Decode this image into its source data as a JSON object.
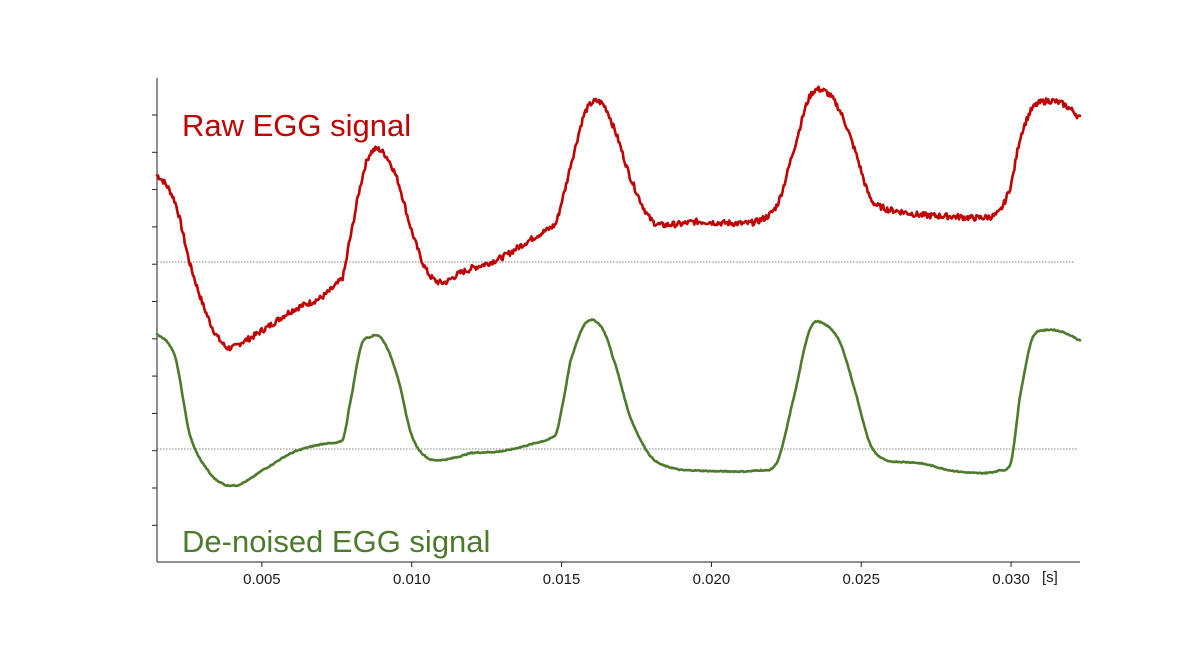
{
  "chart_data": {
    "type": "line",
    "title": "",
    "xlabel": "",
    "x_unit": "[s]",
    "ylabel": "",
    "xlim": [
      0.0015,
      0.0323
    ],
    "x_ticks": [
      0.005,
      0.01,
      0.015,
      0.02,
      0.025,
      0.03
    ],
    "x_tick_labels": [
      "0.005",
      "0.010",
      "0.015",
      "0.020",
      "0.025",
      "0.030"
    ],
    "y_ticks_unlabeled": true,
    "grid": false,
    "legend": "none (series labelled directly on the plot)",
    "series": [
      {
        "name": "Raw EGG signal",
        "color": "#c00000",
        "noisy": true,
        "y_range": [
          -1.05,
          1.0
        ],
        "x": [
          0.0015,
          0.0021,
          0.0026,
          0.0032,
          0.0037,
          0.004,
          0.0043,
          0.005,
          0.006,
          0.007,
          0.0077,
          0.0079,
          0.0083,
          0.0086,
          0.009,
          0.0095,
          0.01,
          0.0105,
          0.011,
          0.0116,
          0.012,
          0.013,
          0.014,
          0.0148,
          0.015,
          0.0153,
          0.0158,
          0.0163,
          0.0167,
          0.0173,
          0.018,
          0.0188,
          0.0195,
          0.0205,
          0.0215,
          0.0222,
          0.0228,
          0.0233,
          0.0238,
          0.0243,
          0.0248,
          0.0253,
          0.0258,
          0.0262,
          0.027,
          0.028,
          0.029,
          0.0296,
          0.03,
          0.0303,
          0.0307,
          0.0312,
          0.0317,
          0.0321,
          0.0323
        ],
        "y": [
          0.32,
          0.12,
          -0.35,
          -0.75,
          -0.95,
          -0.98,
          -0.94,
          -0.85,
          -0.7,
          -0.6,
          -0.45,
          -0.2,
          0.25,
          0.48,
          0.5,
          0.3,
          -0.1,
          -0.4,
          -0.49,
          -0.42,
          -0.38,
          -0.3,
          -0.16,
          -0.05,
          0.12,
          0.4,
          0.8,
          0.87,
          0.7,
          0.3,
          -0.02,
          -0.05,
          -0.03,
          -0.04,
          -0.03,
          0.1,
          0.55,
          0.92,
          0.95,
          0.8,
          0.5,
          0.15,
          0.07,
          0.05,
          0.02,
          0.01,
          0.0,
          0.04,
          0.25,
          0.6,
          0.82,
          0.88,
          0.86,
          0.8,
          0.75
        ]
      },
      {
        "name": "De-noised EGG signal",
        "color": "#4e7a2e",
        "noisy": false,
        "y_range": [
          -1.05,
          1.0
        ],
        "x": [
          0.0015,
          0.0021,
          0.0026,
          0.0032,
          0.0037,
          0.004,
          0.0043,
          0.005,
          0.006,
          0.007,
          0.0077,
          0.0079,
          0.0083,
          0.0086,
          0.009,
          0.0095,
          0.01,
          0.0105,
          0.011,
          0.0116,
          0.012,
          0.013,
          0.014,
          0.0148,
          0.015,
          0.0153,
          0.0158,
          0.0163,
          0.0167,
          0.0173,
          0.018,
          0.0188,
          0.0195,
          0.0205,
          0.0215,
          0.0222,
          0.0228,
          0.0233,
          0.0238,
          0.0243,
          0.0248,
          0.0253,
          0.0258,
          0.0262,
          0.027,
          0.028,
          0.029,
          0.0296,
          0.03,
          0.0303,
          0.0307,
          0.0312,
          0.0317,
          0.0321,
          0.0323
        ],
        "y": [
          0.95,
          0.7,
          -0.2,
          -0.6,
          -0.75,
          -0.77,
          -0.75,
          -0.6,
          -0.4,
          -0.3,
          -0.25,
          0.1,
          0.8,
          0.92,
          0.9,
          0.5,
          -0.2,
          -0.45,
          -0.48,
          -0.44,
          -0.4,
          -0.38,
          -0.3,
          -0.2,
          0.1,
          0.65,
          1.08,
          1.05,
          0.7,
          0.0,
          -0.45,
          -0.58,
          -0.6,
          -0.61,
          -0.6,
          -0.5,
          0.3,
          1.02,
          1.06,
          0.85,
          0.3,
          -0.3,
          -0.48,
          -0.5,
          -0.52,
          -0.6,
          -0.63,
          -0.6,
          -0.5,
          0.25,
          0.9,
          1.0,
          0.98,
          0.92,
          0.88
        ]
      }
    ]
  },
  "labels": {
    "raw": "Raw EGG signal",
    "denoised": "De-noised EGG signal",
    "unit": "[s]"
  },
  "colors": {
    "raw": "#c00000",
    "denoised": "#4e7a2e",
    "axis": "#222222"
  }
}
